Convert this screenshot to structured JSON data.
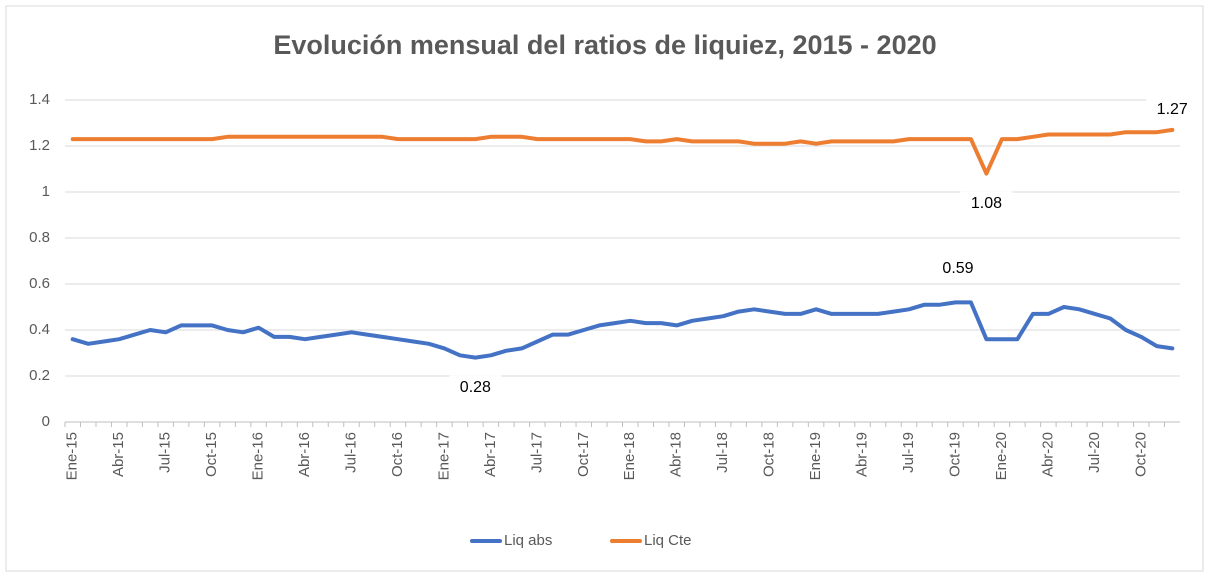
{
  "chart_data": {
    "type": "line",
    "title": "Evolución mensual del ratios de liquiez, 2015 - 2020",
    "categories": [
      "Ene-15",
      null,
      null,
      "Abr-15",
      null,
      null,
      "Jul-15",
      null,
      null,
      "Oct-15",
      null,
      null,
      "Ene-16",
      null,
      null,
      "Abr-16",
      null,
      null,
      "Jul-16",
      null,
      null,
      "Oct-16",
      null,
      null,
      "Ene-17",
      null,
      null,
      "Abr-17",
      null,
      null,
      "Jul-17",
      null,
      null,
      "Oct-17",
      null,
      null,
      "Ene-18",
      null,
      null,
      "Abr-18",
      null,
      null,
      "Jul-18",
      null,
      null,
      "Oct-18",
      null,
      null,
      "Ene-19",
      null,
      null,
      "Abr-19",
      null,
      null,
      "Jul-19",
      null,
      null,
      "Oct-19",
      null,
      null,
      "Ene-20",
      null,
      null,
      "Abr-20",
      null,
      null,
      "Jul-20",
      null,
      null,
      "Oct-20",
      null,
      null
    ],
    "series": [
      {
        "name": "Liq abs",
        "color": "#4472c4",
        "values": [
          0.36,
          0.34,
          0.35,
          0.36,
          0.38,
          0.4,
          0.39,
          0.42,
          0.42,
          0.42,
          0.4,
          0.39,
          0.41,
          0.37,
          0.37,
          0.36,
          0.37,
          0.38,
          0.39,
          0.38,
          0.37,
          0.36,
          0.35,
          0.34,
          0.32,
          0.29,
          0.28,
          0.29,
          0.31,
          0.32,
          0.35,
          0.38,
          0.38,
          0.4,
          0.42,
          0.43,
          0.44,
          0.43,
          0.43,
          0.42,
          0.44,
          0.45,
          0.46,
          0.48,
          0.49,
          0.48,
          0.47,
          0.47,
          0.49,
          0.47,
          0.47,
          0.47,
          0.47,
          0.48,
          0.49,
          0.51,
          0.51,
          0.52,
          0.52,
          0.36,
          0.36,
          0.36,
          0.47,
          0.47,
          0.5,
          0.49,
          0.47,
          0.45,
          0.4,
          0.37,
          0.33,
          0.32
        ],
        "value_labels": [
          null,
          null,
          null,
          null,
          null,
          null,
          null,
          null,
          null,
          null,
          null,
          null,
          null,
          null,
          null,
          null,
          null,
          null,
          null,
          null,
          null,
          null,
          null,
          null,
          null,
          null,
          "0.28",
          null,
          null,
          null,
          null,
          null,
          null,
          null,
          null,
          null,
          null,
          null,
          null,
          null,
          null,
          null,
          null,
          null,
          null,
          null,
          null,
          null,
          null,
          null,
          null,
          null,
          null,
          null,
          null,
          null,
          null,
          null,
          null,
          null,
          null,
          null,
          null,
          null,
          null,
          null,
          null,
          null,
          null,
          null,
          null,
          null
        ]
      },
      {
        "name": "Liq Cte",
        "color": "#ed7d31",
        "values": [
          1.23,
          1.23,
          1.23,
          1.23,
          1.23,
          1.23,
          1.23,
          1.23,
          1.23,
          1.23,
          1.24,
          1.24,
          1.24,
          1.24,
          1.24,
          1.24,
          1.24,
          1.24,
          1.24,
          1.24,
          1.24,
          1.23,
          1.23,
          1.23,
          1.23,
          1.23,
          1.23,
          1.24,
          1.24,
          1.24,
          1.23,
          1.23,
          1.23,
          1.23,
          1.23,
          1.23,
          1.23,
          1.22,
          1.22,
          1.23,
          1.22,
          1.22,
          1.22,
          1.22,
          1.21,
          1.21,
          1.21,
          1.22,
          1.21,
          1.22,
          1.22,
          1.22,
          1.22,
          1.22,
          1.23,
          1.23,
          1.23,
          1.23,
          1.23,
          1.08,
          1.23,
          1.23,
          1.24,
          1.25,
          1.25,
          1.25,
          1.25,
          1.25,
          1.26,
          1.26,
          1.26,
          1.27
        ],
        "value_labels": [
          null,
          null,
          null,
          null,
          null,
          null,
          null,
          null,
          null,
          null,
          null,
          null,
          null,
          null,
          null,
          null,
          null,
          null,
          null,
          null,
          null,
          null,
          null,
          null,
          null,
          null,
          null,
          null,
          null,
          null,
          null,
          null,
          null,
          null,
          null,
          null,
          null,
          null,
          null,
          null,
          null,
          null,
          null,
          null,
          null,
          null,
          null,
          null,
          null,
          null,
          null,
          null,
          null,
          null,
          null,
          null,
          null,
          null,
          null,
          "1.08",
          null,
          null,
          null,
          null,
          null,
          null,
          null,
          null,
          null,
          null,
          null,
          "1.27"
        ]
      }
    ],
    "annotations": [
      "0.59"
    ],
    "ylim": [
      0,
      1.4
    ],
    "yticks": [
      0,
      0.2,
      0.4,
      0.6,
      0.8,
      1,
      1.2,
      1.4
    ],
    "grid": true,
    "legend": "bottom"
  }
}
